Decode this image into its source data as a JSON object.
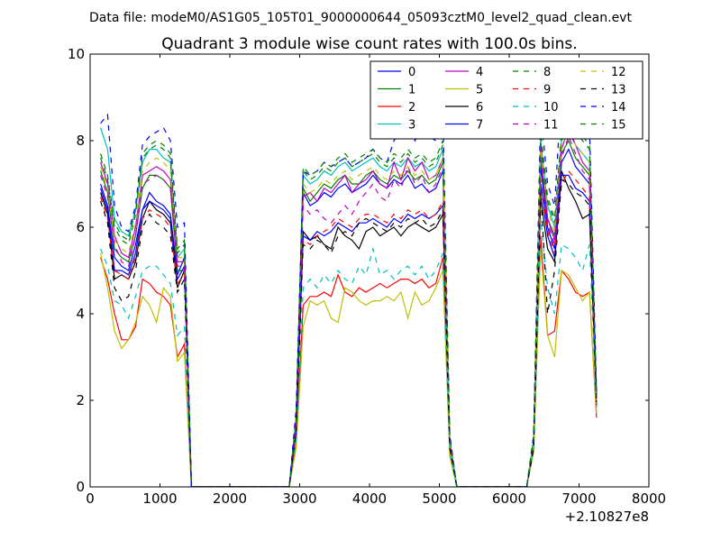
{
  "chart_data": {
    "type": "line",
    "suptitle": "Data file: modeM0/AS1G05_105T01_9000000644_05093cztM0_level2_quad_clean.evt",
    "title": "Quadrant 3 module wise count rates with 100.0s bins.",
    "xlabel": "",
    "ylabel": "",
    "x_offset_label": "+2.10827e8",
    "xlim": [
      0,
      8000
    ],
    "ylim": [
      0,
      10
    ],
    "xticks": [
      0,
      1000,
      2000,
      3000,
      4000,
      5000,
      6000,
      7000,
      8000
    ],
    "yticks": [
      0,
      2,
      4,
      6,
      8,
      10
    ],
    "grid": false,
    "legend_position": "top-right",
    "x": [
      150,
      250,
      350,
      450,
      550,
      650,
      750,
      850,
      950,
      1050,
      1150,
      1250,
      1350,
      1450,
      1550,
      2850,
      2950,
      3050,
      3150,
      3250,
      3350,
      3450,
      3550,
      3650,
      3750,
      3850,
      3950,
      4050,
      4150,
      4250,
      4350,
      4450,
      4550,
      4650,
      4750,
      4850,
      4950,
      5050,
      5150,
      5250,
      6250,
      6350,
      6450,
      6550,
      6650,
      6750,
      6850,
      6950,
      7050,
      7150,
      7250
    ],
    "series": [
      {
        "name": "0",
        "color": "#0000ff",
        "dash": "solid",
        "values": [
          7.0,
          6.5,
          5.3,
          5.1,
          5.0,
          5.6,
          6.4,
          6.8,
          6.6,
          6.5,
          6.3,
          4.9,
          5.3,
          0.0,
          0.0,
          0.0,
          1.4,
          6.8,
          6.5,
          6.6,
          6.8,
          6.7,
          6.9,
          7.0,
          6.8,
          6.9,
          7.0,
          7.2,
          7.0,
          6.9,
          7.1,
          7.0,
          7.2,
          6.9,
          7.0,
          6.8,
          6.9,
          7.3,
          1.0,
          0.0,
          0.0,
          1.0,
          7.4,
          6.0,
          5.5,
          7.5,
          7.8,
          7.4,
          7.2,
          7.0,
          2.0
        ]
      },
      {
        "name": "1",
        "color": "#008000",
        "dash": "solid",
        "values": [
          7.3,
          6.8,
          5.5,
          5.3,
          5.2,
          5.8,
          6.9,
          7.2,
          7.2,
          7.1,
          6.9,
          5.0,
          5.0,
          0.0,
          0.0,
          0.0,
          1.5,
          6.9,
          6.6,
          6.8,
          7.0,
          6.9,
          7.1,
          7.2,
          7.0,
          7.0,
          7.2,
          7.3,
          7.1,
          7.0,
          7.2,
          7.1,
          7.3,
          7.1,
          7.2,
          7.0,
          7.1,
          7.5,
          1.0,
          0.0,
          0.0,
          1.0,
          7.6,
          6.2,
          5.8,
          7.7,
          8.0,
          7.6,
          7.4,
          7.2,
          2.0
        ]
      },
      {
        "name": "2",
        "color": "#ff0000",
        "dash": "solid",
        "values": [
          5.3,
          4.8,
          4.0,
          3.4,
          3.4,
          3.7,
          4.8,
          4.7,
          4.5,
          4.4,
          4.2,
          3.0,
          3.3,
          0.0,
          0.0,
          0.0,
          1.0,
          4.2,
          4.4,
          4.4,
          4.5,
          4.4,
          4.9,
          4.5,
          4.4,
          4.6,
          4.5,
          4.6,
          4.7,
          4.6,
          4.7,
          4.8,
          4.8,
          4.7,
          4.8,
          4.6,
          4.7,
          5.3,
          0.8,
          0.0,
          0.0,
          0.9,
          5.8,
          3.5,
          3.6,
          5.0,
          4.8,
          4.5,
          4.4,
          4.5,
          1.6
        ]
      },
      {
        "name": "3",
        "color": "#00bfbf",
        "dash": "solid",
        "values": [
          8.3,
          7.8,
          6.2,
          5.9,
          5.8,
          6.4,
          7.5,
          7.8,
          7.8,
          7.6,
          7.5,
          5.3,
          5.5,
          0.0,
          0.0,
          0.0,
          1.6,
          7.2,
          7.0,
          7.1,
          7.3,
          7.2,
          7.4,
          7.5,
          7.3,
          7.4,
          7.5,
          7.6,
          7.4,
          7.3,
          7.5,
          7.4,
          7.6,
          7.4,
          7.5,
          7.3,
          7.4,
          7.8,
          1.1,
          0.0,
          0.0,
          1.1,
          8.0,
          6.5,
          6.0,
          8.0,
          8.2,
          7.9,
          7.7,
          7.5,
          2.1
        ]
      },
      {
        "name": "4",
        "color": "#bf00bf",
        "dash": "solid",
        "values": [
          7.5,
          7.0,
          5.8,
          5.4,
          5.3,
          6.0,
          7.2,
          7.3,
          7.4,
          7.3,
          7.1,
          5.2,
          5.2,
          0.0,
          0.0,
          0.0,
          1.5,
          6.7,
          6.8,
          6.6,
          6.9,
          6.8,
          7.0,
          7.2,
          6.8,
          7.0,
          7.1,
          7.3,
          7.0,
          6.9,
          7.5,
          7.1,
          7.6,
          7.3,
          7.5,
          7.1,
          7.2,
          7.6,
          1.0,
          0.0,
          0.0,
          1.0,
          7.9,
          6.2,
          5.7,
          7.8,
          8.3,
          7.9,
          7.5,
          7.3,
          2.0
        ]
      },
      {
        "name": "5",
        "color": "#bfbf00",
        "dash": "solid",
        "values": [
          5.4,
          4.6,
          3.6,
          3.2,
          3.4,
          3.8,
          4.4,
          4.2,
          3.8,
          4.6,
          4.4,
          2.9,
          3.1,
          0.0,
          0.0,
          0.0,
          0.9,
          3.7,
          4.3,
          4.2,
          4.3,
          3.9,
          3.8,
          4.6,
          4.5,
          4.3,
          4.2,
          4.3,
          4.3,
          4.4,
          4.3,
          4.5,
          3.9,
          4.5,
          4.2,
          4.3,
          4.6,
          5.0,
          0.7,
          0.0,
          0.0,
          0.8,
          5.5,
          3.5,
          3.0,
          5.0,
          4.9,
          4.6,
          4.3,
          4.5,
          1.7
        ]
      },
      {
        "name": "6",
        "color": "#000000",
        "dash": "solid",
        "values": [
          6.8,
          6.3,
          4.8,
          4.9,
          4.8,
          5.2,
          6.2,
          6.6,
          6.4,
          6.3,
          6.1,
          4.6,
          5.0,
          0.0,
          0.0,
          0.0,
          1.3,
          5.9,
          5.7,
          5.8,
          5.6,
          5.5,
          6.0,
          5.8,
          5.7,
          5.5,
          5.9,
          6.0,
          5.8,
          5.9,
          6.0,
          5.8,
          6.0,
          6.1,
          6.0,
          5.9,
          6.0,
          6.3,
          0.9,
          0.0,
          0.0,
          0.9,
          6.7,
          5.5,
          5.2,
          7.3,
          6.9,
          6.6,
          6.2,
          6.3,
          1.9
        ]
      },
      {
        "name": "7",
        "color": "#0000ff",
        "dash": "solid",
        "values": [
          6.9,
          6.4,
          5.0,
          5.0,
          4.9,
          5.4,
          6.4,
          6.6,
          6.5,
          6.4,
          6.2,
          4.8,
          5.1,
          0.0,
          0.0,
          0.0,
          1.3,
          5.8,
          5.7,
          5.9,
          5.8,
          5.9,
          6.1,
          6.0,
          5.9,
          6.1,
          6.1,
          6.2,
          6.1,
          6.0,
          6.2,
          6.1,
          6.3,
          6.2,
          6.3,
          6.2,
          6.3,
          6.5,
          1.0,
          0.0,
          0.0,
          1.0,
          7.0,
          5.8,
          5.3,
          7.2,
          7.2,
          6.9,
          6.8,
          6.6,
          2.0
        ]
      },
      {
        "name": "8",
        "color": "#008000",
        "dash": "dashed",
        "values": [
          7.6,
          7.1,
          6.0,
          5.7,
          5.6,
          6.3,
          7.6,
          7.8,
          7.9,
          7.8,
          7.6,
          5.4,
          5.6,
          0.0,
          0.0,
          0.0,
          1.6,
          7.3,
          7.1,
          7.2,
          7.4,
          7.3,
          7.5,
          7.6,
          7.4,
          7.5,
          7.6,
          7.7,
          7.5,
          7.4,
          7.6,
          7.5,
          7.7,
          7.5,
          7.6,
          7.4,
          7.5,
          7.9,
          1.1,
          0.0,
          0.0,
          1.1,
          8.1,
          6.6,
          6.1,
          8.1,
          8.5,
          8.2,
          8.0,
          7.8,
          2.1
        ]
      },
      {
        "name": "9",
        "color": "#ff0000",
        "dash": "dashed",
        "values": [
          6.7,
          6.2,
          5.0,
          4.9,
          4.8,
          5.3,
          6.2,
          6.4,
          6.3,
          6.2,
          6.0,
          4.7,
          4.9,
          0.0,
          0.0,
          0.0,
          1.3,
          5.7,
          5.6,
          5.8,
          5.9,
          6.0,
          6.2,
          6.1,
          6.0,
          6.2,
          6.3,
          6.3,
          6.2,
          6.1,
          6.3,
          6.2,
          6.4,
          6.3,
          6.4,
          6.2,
          6.3,
          6.6,
          1.0,
          0.0,
          0.0,
          1.0,
          7.1,
          5.9,
          5.4,
          7.0,
          7.3,
          7.1,
          6.9,
          6.7,
          2.0
        ]
      },
      {
        "name": "10",
        "color": "#00bfbf",
        "dash": "dashed",
        "values": [
          5.5,
          5.1,
          4.3,
          4.2,
          3.9,
          4.4,
          5.0,
          5.1,
          5.1,
          4.9,
          4.7,
          3.5,
          3.7,
          0.0,
          0.0,
          0.0,
          1.1,
          4.6,
          4.8,
          4.6,
          4.9,
          4.7,
          5.0,
          4.8,
          4.7,
          5.1,
          4.9,
          5.5,
          4.9,
          5.0,
          4.8,
          5.0,
          5.1,
          4.9,
          5.1,
          4.8,
          5.0,
          5.4,
          0.8,
          0.0,
          0.0,
          0.9,
          6.2,
          4.6,
          4.0,
          5.6,
          5.5,
          5.3,
          5.0,
          5.6,
          1.8
        ]
      },
      {
        "name": "11",
        "color": "#bf00bf",
        "dash": "dashed",
        "values": [
          7.2,
          6.7,
          5.6,
          5.2,
          5.1,
          5.8,
          7.0,
          7.1,
          7.2,
          7.1,
          6.9,
          5.1,
          5.1,
          0.0,
          0.0,
          0.0,
          1.5,
          6.5,
          6.3,
          6.4,
          6.2,
          6.1,
          6.3,
          6.5,
          6.3,
          6.6,
          6.8,
          7.0,
          6.7,
          6.6,
          7.1,
          6.9,
          7.4,
          7.0,
          7.2,
          6.8,
          7.0,
          7.4,
          1.0,
          0.0,
          0.0,
          1.0,
          7.7,
          6.1,
          5.6,
          7.6,
          8.1,
          7.7,
          7.3,
          7.1,
          2.0
        ]
      },
      {
        "name": "12",
        "color": "#bfbf00",
        "dash": "dashed",
        "values": [
          7.4,
          6.9,
          5.7,
          5.5,
          5.4,
          6.1,
          7.3,
          7.5,
          7.6,
          7.5,
          7.3,
          5.3,
          5.3,
          0.0,
          0.0,
          0.0,
          1.5,
          7.0,
          6.8,
          6.9,
          7.1,
          7.0,
          7.2,
          7.3,
          7.1,
          7.2,
          7.3,
          7.4,
          7.2,
          7.1,
          7.3,
          7.2,
          7.4,
          7.2,
          7.3,
          7.1,
          7.2,
          7.6,
          1.0,
          0.0,
          0.0,
          1.0,
          7.8,
          6.4,
          5.9,
          7.9,
          8.2,
          7.9,
          7.7,
          7.5,
          2.0
        ]
      },
      {
        "name": "13",
        "color": "#000000",
        "dash": "dashed",
        "values": [
          6.6,
          6.1,
          4.6,
          4.3,
          4.4,
          5.0,
          6.0,
          6.3,
          6.1,
          6.0,
          5.8,
          4.5,
          4.8,
          0.0,
          0.0,
          0.0,
          1.3,
          5.6,
          5.5,
          5.7,
          5.6,
          5.4,
          5.8,
          5.9,
          5.8,
          6.1,
          6.2,
          6.1,
          6.0,
          5.9,
          6.1,
          6.0,
          6.2,
          6.1,
          6.2,
          6.0,
          6.1,
          6.4,
          0.9,
          0.0,
          0.0,
          0.9,
          6.8,
          4.0,
          5.0,
          7.1,
          7.0,
          6.8,
          6.7,
          6.5,
          1.9
        ]
      },
      {
        "name": "14",
        "color": "#0000ff",
        "dash": "dashed",
        "values": [
          8.4,
          8.6,
          6.5,
          6.0,
          5.9,
          6.5,
          7.9,
          8.1,
          8.2,
          8.3,
          8.0,
          6.0,
          6.1,
          0.0,
          0.0,
          0.0,
          1.8,
          7.3,
          7.2,
          7.3,
          7.5,
          7.4,
          7.5,
          7.6,
          7.4,
          7.5,
          7.6,
          7.8,
          7.6,
          7.5,
          8.0,
          8.2,
          8.6,
          8.0,
          8.3,
          8.1,
          8.0,
          8.6,
          1.2,
          0.0,
          0.0,
          1.2,
          8.7,
          7.0,
          6.5,
          9.2,
          9.0,
          8.7,
          8.5,
          8.3,
          2.2
        ]
      },
      {
        "name": "15",
        "color": "#008000",
        "dash": "dashed",
        "values": [
          7.7,
          7.2,
          6.1,
          5.8,
          5.7,
          6.4,
          7.7,
          7.9,
          8.0,
          7.9,
          7.7,
          5.5,
          5.7,
          0.0,
          0.0,
          0.0,
          1.6,
          7.4,
          7.2,
          7.3,
          7.5,
          7.4,
          7.6,
          7.7,
          7.5,
          7.6,
          7.7,
          7.8,
          7.6,
          7.5,
          7.7,
          7.6,
          7.8,
          7.6,
          7.7,
          7.5,
          7.6,
          8.0,
          1.1,
          0.0,
          0.0,
          1.1,
          8.2,
          6.7,
          6.2,
          8.2,
          8.6,
          8.3,
          8.1,
          7.9,
          2.1
        ]
      }
    ]
  }
}
